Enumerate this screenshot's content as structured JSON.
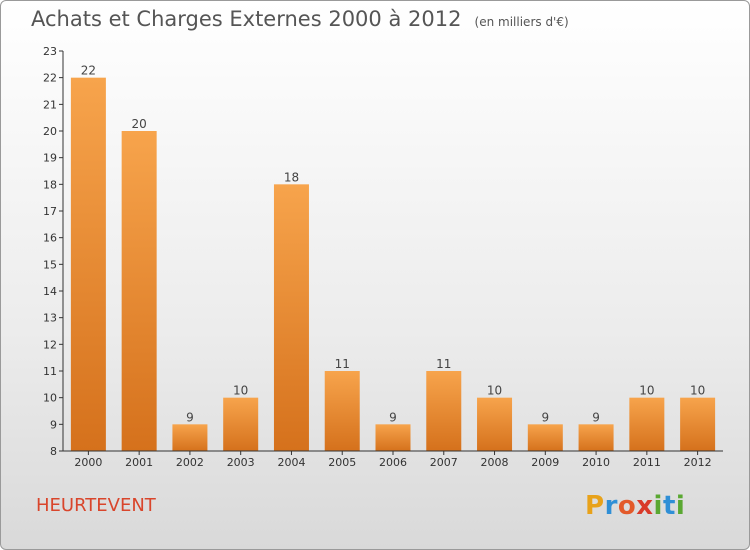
{
  "title": "Achats et Charges Externes 2000 à 2012",
  "unit": "(en milliers d'€)",
  "commune": "HEURTEVENT",
  "logo": {
    "letters": [
      "P",
      "r",
      "o",
      "x",
      "i",
      "t",
      "i"
    ]
  },
  "colors": {
    "bar_light": "#f7a44c",
    "bar_dark": "#d5711c",
    "axis": "#333333",
    "commune": "#d9452b"
  },
  "chart_data": {
    "type": "bar",
    "categories": [
      "2000",
      "2001",
      "2002",
      "2003",
      "2004",
      "2005",
      "2006",
      "2007",
      "2008",
      "2009",
      "2010",
      "2011",
      "2012"
    ],
    "values": [
      22,
      20,
      9,
      10,
      18,
      11,
      9,
      11,
      10,
      9,
      9,
      10,
      10
    ],
    "ylim": [
      8,
      23
    ],
    "yticks": [
      8,
      9,
      10,
      11,
      12,
      13,
      14,
      15,
      16,
      17,
      18,
      19,
      20,
      21,
      22,
      23
    ],
    "grid": false,
    "legend": "none",
    "title": "Achats et Charges Externes 2000 à 2012",
    "xlabel": "",
    "ylabel": ""
  }
}
